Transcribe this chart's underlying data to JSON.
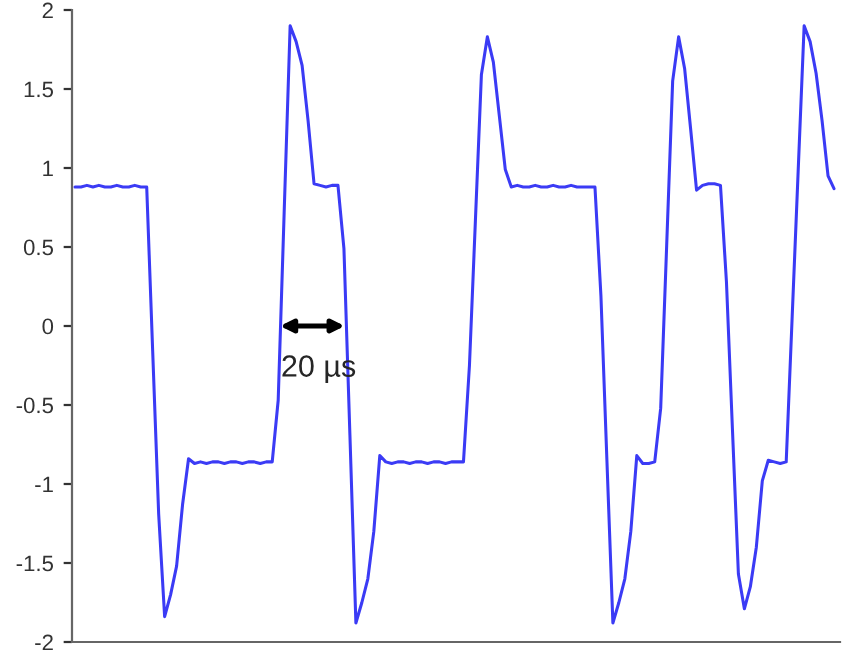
{
  "chart_data": {
    "type": "line",
    "categories": [
      null,
      null,
      null,
      null,
      null,
      null,
      null,
      null,
      null,
      null,
      null,
      null,
      null,
      null,
      null,
      null,
      null,
      null,
      null,
      null,
      null,
      null,
      null,
      null,
      null,
      null,
      null,
      null,
      null,
      null,
      null,
      null,
      null,
      null,
      null,
      null,
      null,
      null,
      null,
      null,
      null,
      null,
      null,
      null,
      null,
      null,
      null,
      null,
      null,
      null,
      null,
      null,
      null,
      null,
      null,
      null,
      null,
      null,
      null,
      null,
      null,
      null,
      null,
      null,
      null,
      null,
      null,
      null,
      null,
      null,
      null,
      null,
      null,
      null,
      null,
      null,
      null,
      null,
      null,
      null,
      null,
      null,
      null,
      null,
      null,
      null,
      null,
      null,
      null,
      null,
      null,
      null,
      null,
      null,
      null,
      null,
      null,
      null,
      null,
      null,
      null,
      null,
      null,
      null,
      null,
      null,
      null,
      null,
      null,
      null,
      null,
      null,
      null,
      null,
      null,
      null,
      null,
      null,
      null,
      null,
      null,
      null,
      null,
      null,
      null,
      null,
      null,
      null
    ],
    "series": [
      {
        "color": "#3b3bf5",
        "values": [
          0.88,
          0.88,
          0.89,
          0.88,
          0.89,
          0.88,
          0.88,
          0.89,
          0.88,
          0.88,
          0.89,
          0.88,
          0.88,
          -0.16,
          -1.19,
          -1.84,
          -1.7,
          -1.52,
          -1.13,
          -0.84,
          -0.87,
          -0.86,
          -0.87,
          -0.86,
          -0.86,
          -0.87,
          -0.86,
          -0.86,
          -0.87,
          -0.86,
          -0.86,
          -0.87,
          -0.86,
          -0.86,
          -0.47,
          0.72,
          1.9,
          1.8,
          1.65,
          1.3,
          0.9,
          0.89,
          0.88,
          0.89,
          0.89,
          0.49,
          -0.69,
          -1.88,
          -1.75,
          -1.6,
          -1.3,
          -0.82,
          -0.86,
          -0.87,
          -0.86,
          -0.86,
          -0.87,
          -0.86,
          -0.86,
          -0.87,
          -0.86,
          -0.86,
          -0.87,
          -0.86,
          -0.86,
          -0.86,
          -0.25,
          0.67,
          1.59,
          1.83,
          1.67,
          1.33,
          0.99,
          0.88,
          0.89,
          0.88,
          0.88,
          0.89,
          0.88,
          0.88,
          0.89,
          0.88,
          0.88,
          0.89,
          0.88,
          0.88,
          0.88,
          0.88,
          0.19,
          -0.85,
          -1.88,
          -1.75,
          -1.6,
          -1.3,
          -0.82,
          -0.87,
          -0.87,
          -0.86,
          -0.52,
          0.51,
          1.55,
          1.83,
          1.63,
          1.25,
          0.86,
          0.89,
          0.9,
          0.9,
          0.89,
          0.28,
          -0.65,
          -1.57,
          -1.79,
          -1.65,
          -1.4,
          -0.98,
          -0.85,
          -0.86,
          -0.87,
          -0.86,
          0.06,
          0.98,
          1.9,
          1.8,
          1.6,
          1.3,
          0.95,
          0.87
        ]
      }
    ],
    "ylim": [
      -2,
      2
    ],
    "yticks": [
      -2,
      -1.5,
      -1,
      -0.5,
      0,
      0.5,
      1,
      1.5,
      2
    ],
    "tick_labels": "y",
    "grid": false,
    "marker": "none",
    "line_style": "solid",
    "annotations": [
      "20 µs"
    ]
  }
}
